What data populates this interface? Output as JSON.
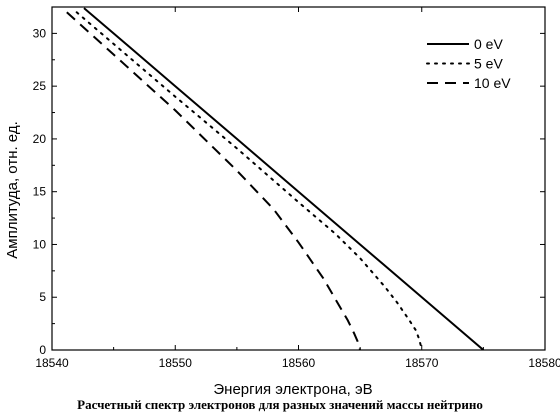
{
  "caption": "Расчетный спектр электронов для разных значений массы нейтрино",
  "chart_data": {
    "type": "line",
    "xlabel": "Энергия электрона, эВ",
    "ylabel": "Амплитуда, отн. ед.",
    "xlim": [
      18540,
      18580
    ],
    "ylim": [
      0,
      32.5
    ],
    "xticks": [
      18540,
      18550,
      18560,
      18570,
      18580
    ],
    "yticks": [
      0,
      5,
      10,
      15,
      20,
      25,
      30
    ],
    "legend_position": "top-right",
    "series": [
      {
        "name": "0 eV",
        "style": "solid",
        "x": [
          18542.6,
          18545,
          18550,
          18555,
          18560,
          18565,
          18570,
          18575
        ],
        "y": [
          32.4,
          30.0,
          25.0,
          20.0,
          15.0,
          10.0,
          5.0,
          0.0
        ]
      },
      {
        "name": "5 eV",
        "style": "dotted",
        "x": [
          18542.0,
          18545,
          18550,
          18555,
          18560,
          18563,
          18565,
          18567,
          18568,
          18569,
          18569.5,
          18569.8,
          18570
        ],
        "y": [
          32.0,
          29.0,
          24.0,
          19.1,
          14.0,
          11.0,
          8.7,
          6.0,
          4.5,
          2.8,
          1.9,
          1.0,
          0.0
        ]
      },
      {
        "name": "10 eV",
        "style": "dashed",
        "x": [
          18541.2,
          18545,
          18550,
          18555,
          18558,
          18560,
          18562,
          18563,
          18564,
          18564.5,
          18564.8,
          18565
        ],
        "y": [
          32.0,
          28.0,
          22.7,
          17.0,
          13.3,
          10.2,
          6.8,
          4.8,
          2.8,
          1.6,
          0.8,
          0.0
        ]
      }
    ]
  }
}
